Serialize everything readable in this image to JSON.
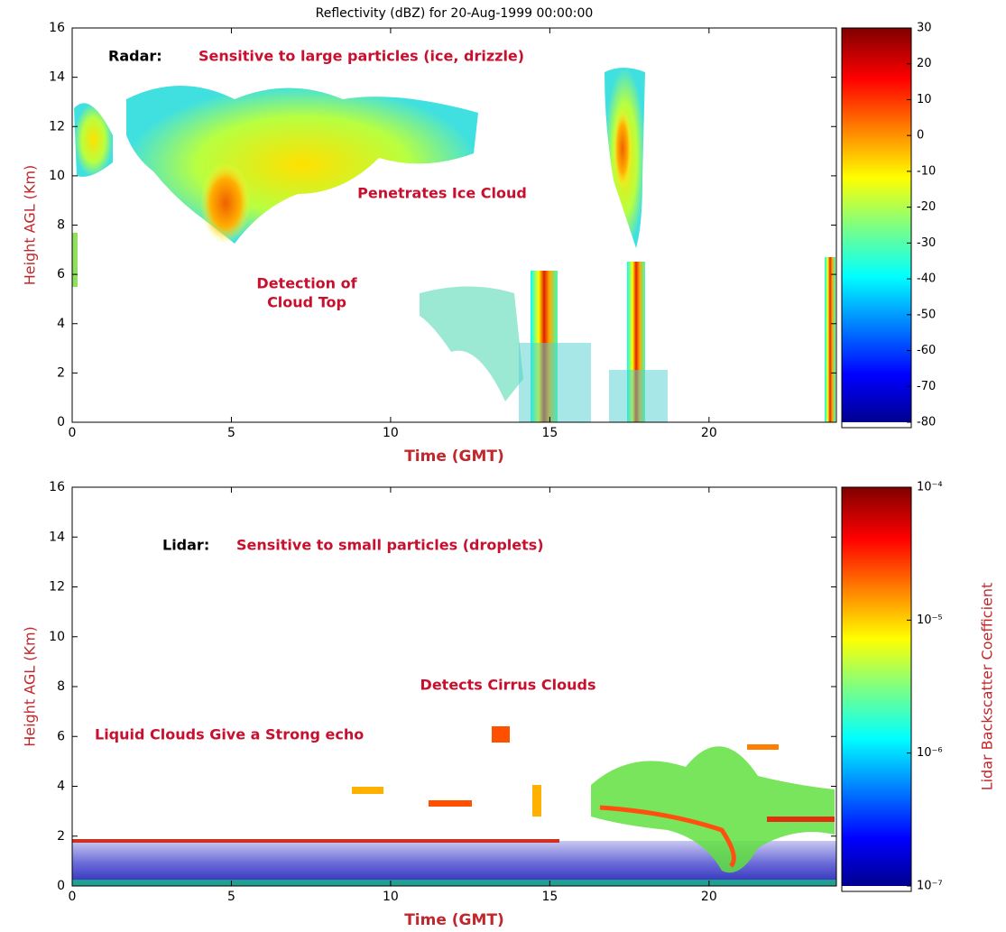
{
  "chart_data": [
    {
      "type": "heatmap",
      "title": "Reflectivity (dBZ) for 20-Aug-1999 00:00:00",
      "xlabel": "Time (GMT)",
      "ylabel": "Height AGL (Km)",
      "xlim": [
        0,
        24
      ],
      "xticks": [
        0,
        5,
        10,
        15,
        20
      ],
      "ylim": [
        0,
        16
      ],
      "yticks": [
        0,
        2,
        4,
        6,
        8,
        10,
        12,
        14,
        16
      ],
      "colorbar": {
        "lim": [
          -80,
          30
        ],
        "ticks": [
          30,
          20,
          10,
          0,
          -10,
          -20,
          -30,
          -40,
          -50,
          -60,
          -70,
          -80
        ],
        "log": false
      },
      "annotations": [
        {
          "text": "Radar:",
          "color": "#000000"
        },
        {
          "text": "Sensitive to large particles (ice, drizzle)",
          "color": "#c8102e"
        },
        {
          "text": "Penetrates Ice Cloud",
          "color": "#c8102e"
        },
        {
          "text": "Detection of",
          "color": "#c8102e"
        },
        {
          "text": "Cloud Top",
          "color": "#c8102e"
        }
      ]
    },
    {
      "type": "heatmap",
      "xlabel": "Time (GMT)",
      "ylabel": "Height AGL (Km)",
      "xlim": [
        0,
        24
      ],
      "xticks": [
        0,
        5,
        10,
        15,
        20
      ],
      "ylim": [
        0,
        16
      ],
      "yticks": [
        0,
        2,
        4,
        6,
        8,
        10,
        12,
        14,
        16
      ],
      "colorbar": {
        "lim": [
          1e-07,
          0.0001
        ],
        "label": "Lidar Backscatter Coefficient",
        "log": true,
        "ticks": [
          {
            "value": 0.0001,
            "label": "10⁻⁴"
          },
          {
            "value": 1e-05,
            "label": "10⁻⁵"
          },
          {
            "value": 1e-06,
            "label": "10⁻⁶"
          },
          {
            "value": 1e-07,
            "label": "10⁻⁷"
          }
        ]
      },
      "annotations": [
        {
          "text": "Lidar:",
          "color": "#000000"
        },
        {
          "text": "Sensitive to small particles (droplets)",
          "color": "#c8102e"
        },
        {
          "text": "Detects Cirrus Clouds",
          "color": "#c8102e"
        },
        {
          "text": "Liquid Clouds Give a Strong echo",
          "color": "#c8102e"
        }
      ]
    }
  ]
}
